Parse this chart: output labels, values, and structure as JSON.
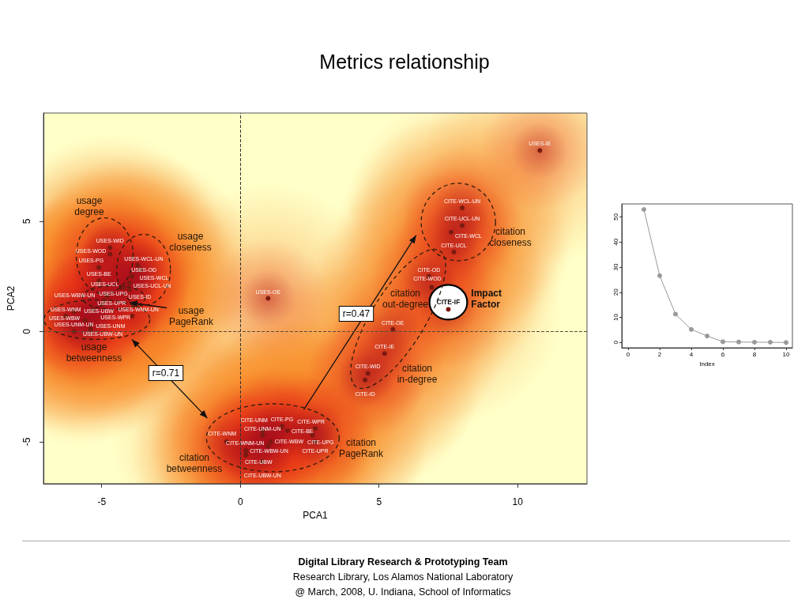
{
  "chart_data": [
    {
      "type": "scatter",
      "title": "Metrics relationship",
      "xlabel": "PCA1",
      "ylabel": "PCA2",
      "xlim": [
        -7.1,
        12.5
      ],
      "ylim": [
        -6.9,
        9.9
      ],
      "xticks": [
        -5,
        0,
        5,
        10
      ],
      "yticks": [
        -5,
        0,
        5
      ],
      "marker": "circle",
      "series": [
        {
          "color": "#7a1a10",
          "x": [
            10.8,
            1.0,
            -4.7,
            -4.7,
            -5.1,
            -3.7,
            -3.6,
            -5.1,
            -3.9,
            -4.0,
            -4.2,
            -4.0,
            -4.8,
            -4.9,
            -5.0,
            -5.3,
            -6.0,
            -6.3,
            -3.9,
            -5.6,
            -5.4,
            -5.4,
            -6.0,
            8.0,
            8.0,
            7.6,
            7.7,
            6.8,
            6.9,
            5.5,
            5.2,
            4.6,
            4.5,
            1.5,
            0.8,
            1.7,
            2.7,
            0.8,
            2.6,
            1.1,
            2.7,
            -0.5,
            1.0,
            0.2,
            0.2,
            0.8
          ],
          "values": [
            8.2,
            1.5,
            3.8,
            3.5,
            2.9,
            3.0,
            2.8,
            2.3,
            2.5,
            2.2,
            2.0,
            1.9,
            1.6,
            1.4,
            1.2,
            1.0,
            0.9,
            0.7,
            0.7,
            0.5,
            0.3,
            0.1,
            0.0,
            5.6,
            4.8,
            4.5,
            3.6,
            2.5,
            2.0,
            0.1,
            -1.0,
            -1.9,
            -2.2,
            -4.3,
            -4.5,
            -4.5,
            -4.4,
            -4.7,
            -4.7,
            -5.0,
            -5.0,
            -5.0,
            -5.2,
            -5.4,
            -5.6,
            -5.9
          ],
          "value_labels": [
            "USES-IE",
            "USES-OE",
            "USES-WID",
            "USES-WOD",
            "USES-PG",
            "USES-WCL-UN",
            "USES-WCL",
            "USES-BE",
            "USES-OD",
            "USES-ID",
            "USES-UCL",
            "USES-UCL-UN",
            "USES-UPR",
            "USES-UPG",
            "USES-WPR",
            "USES-WBW-UN",
            "USES-WBW",
            "USES-WNM",
            "USES-WNM-UN",
            "USES-UBW",
            "USES-UBW-UN",
            "USES-UNM",
            "USES-UNM-UN",
            "CITE-WCL-UN",
            "CITE-UCL-UN",
            "CITE-WCL",
            "CITE-UCL",
            "CITE-OD",
            "CITE-WOD",
            "CITE-OE",
            "CITE-IE",
            "CITE-WID",
            "CITE-ID",
            "CITE-PG",
            "CITE-UNM",
            "CITE-BE",
            "CITE-WPR",
            "CITE-UNM-UN",
            "CITE-UPG",
            "CITE-WBW",
            "CITE-UPR",
            "CITE-WNM",
            "CITE-WNM-UN",
            "CITE-WBW-UN",
            "CITE-UBW",
            "CITE-UBW-UN"
          ]
        },
        {
          "name": "Impact Factor",
          "color": "#7a1a10",
          "x": [
            7.5
          ],
          "values": [
            1.0
          ],
          "value_labels": [
            "CITE-IF"
          ]
        }
      ],
      "ref_lines": [
        {
          "axis": "x",
          "value": 0,
          "line_style": "dashed",
          "color": "#333333"
        },
        {
          "axis": "y",
          "value": 0,
          "line_style": "dashed",
          "color": "#5a4a3a"
        }
      ],
      "annotations": [
        "usage degree",
        "usage closeness",
        "usage PageRank",
        "usage betweenness",
        "citation betweenness",
        "citation PageRank",
        "citation closeness",
        "citation out-degree",
        "citation in-degree",
        "r=0.71",
        "r=0.47",
        "Digital Library Research & Prototyping Team",
        "Research Library, Los Alamos National Laboratory",
        "@ March, 2008, U. Indiana, School of Informatics"
      ]
    },
    {
      "type": "line",
      "xlabel": "Index",
      "x": [
        1,
        2,
        3,
        4,
        5,
        6,
        7,
        8,
        9,
        10
      ],
      "values": [
        53,
        26.6,
        11.3,
        5.2,
        2.6,
        0.3,
        0.2,
        0.1,
        0.1,
        0
      ],
      "color": "#999999",
      "marker": "circle",
      "xlim": [
        -0.4,
        10.4
      ],
      "ylim": [
        -2.1,
        55.2
      ],
      "xticks": [
        0,
        2,
        4,
        6,
        8,
        10
      ],
      "yticks": [
        0,
        10,
        20,
        30,
        40,
        50
      ]
    }
  ]
}
